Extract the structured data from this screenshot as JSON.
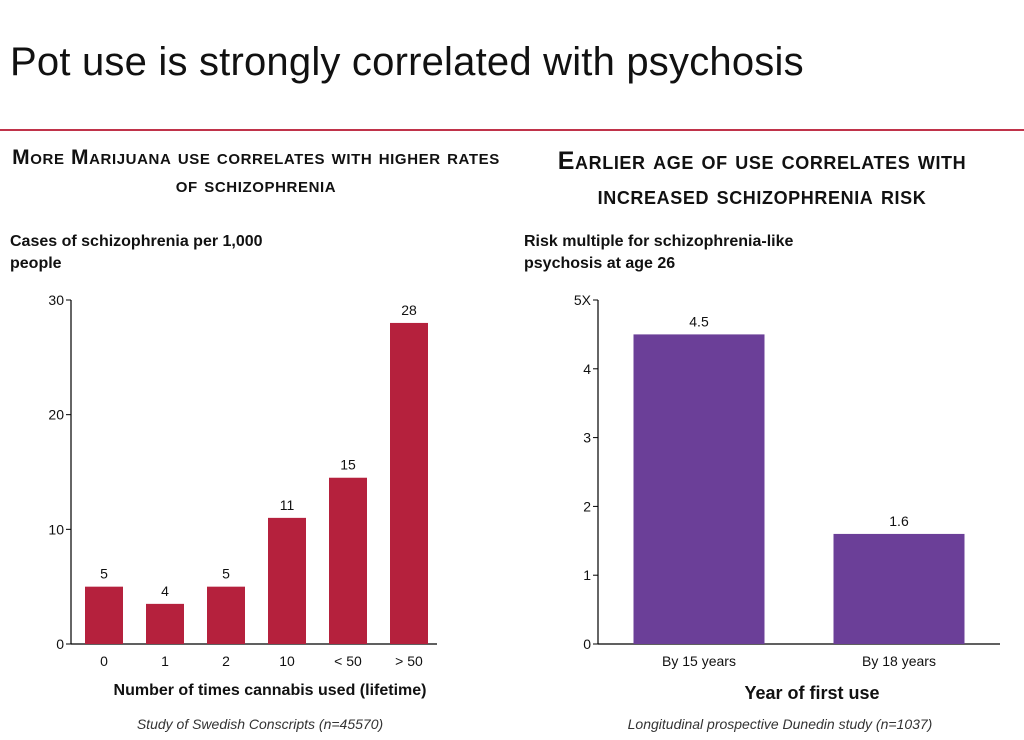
{
  "page": {
    "title": "Pot use is strongly correlated with psychosis",
    "rule_color": "#c0334a"
  },
  "chart_data": [
    {
      "type": "bar",
      "heading": "More Marijuana use correlates with higher rates of schizophrenia",
      "title": "",
      "ylabel": "Cases of schizophrenia per 1,000 people",
      "xlabel": "Number of times cannabis used (lifetime)",
      "source": "Study of Swedish Conscripts (n=45570)",
      "categories": [
        "0",
        "1",
        "2",
        "10",
        "< 50",
        "> 50"
      ],
      "values": [
        5,
        3.5,
        5,
        11,
        14.5,
        28
      ],
      "data_labels": [
        "5",
        "4",
        "5",
        "11",
        "15",
        "28"
      ],
      "ylim": [
        0,
        30
      ],
      "yticks": [
        0,
        10,
        20,
        30
      ],
      "ytick_labels": [
        "0",
        "10",
        "20",
        "30"
      ],
      "grid": false,
      "color": "#b5213d"
    },
    {
      "type": "bar",
      "heading": "Earlier age of use correlates with increased schizophrenia risk",
      "title": "",
      "ylabel": "Risk multiple for schizophrenia-like psychosis at age 26",
      "xlabel": "Year of first use",
      "source": "Longitudinal prospective Dunedin study (n=1037)",
      "categories": [
        "By 15 years",
        "By 18 years"
      ],
      "values": [
        4.5,
        1.6
      ],
      "data_labels": [
        "4.5",
        "1.6"
      ],
      "ylim": [
        0,
        5
      ],
      "yticks": [
        0,
        1,
        2,
        3,
        4,
        5
      ],
      "ytick_labels": [
        "0",
        "1",
        "2",
        "3",
        "4",
        "5X"
      ],
      "grid": false,
      "color": "#6b3f98"
    }
  ]
}
